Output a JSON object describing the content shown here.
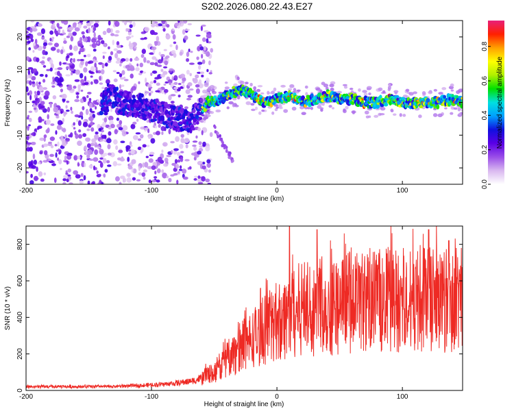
{
  "title": "S202.2026.080.22.43.E27",
  "colors": {
    "snr_line": "#ee2a24",
    "heat_low": "#e8d6f6",
    "heat_mid": "#6a1ae6",
    "axis": "#000000"
  },
  "colorbar": {
    "label": "Normalized spectral amplitude",
    "range": [
      0.0,
      0.95
    ],
    "ticks": [
      0.0,
      0.2,
      0.4,
      0.6,
      0.8
    ],
    "tick_labels": [
      "0.0",
      "0.2",
      "0.4",
      "0.6",
      "0.8"
    ],
    "stops": [
      "#ffffff",
      "#d9b8f0",
      "#9a4ee8",
      "#5a00e6",
      "#1010e0",
      "#00a0ff",
      "#00e0e0",
      "#00e000",
      "#b0f000",
      "#ffff00",
      "#ffa000",
      "#ff2000",
      "#e8207a"
    ]
  },
  "chart_data": [
    {
      "type": "heatmap",
      "panel": "spectrogram",
      "title": "S202.2026.080.22.43.E27",
      "xlabel": "Height of straight line (km)",
      "ylabel": "Frequency (Hz)",
      "xlim": [
        -200,
        148
      ],
      "ylim": [
        -25,
        25
      ],
      "xticks": [
        -200,
        -100,
        0,
        100
      ],
      "xtick_labels": [
        "-200",
        "-100",
        "0",
        "100"
      ],
      "yticks": [
        -20,
        -10,
        0,
        10,
        20
      ],
      "ytick_labels": [
        "-20",
        "-10",
        "0",
        "10",
        "20"
      ],
      "colorbar_label": "Normalized spectral amplitude",
      "signal_centerline": [
        [
          -135,
          3
        ],
        [
          -125,
          0
        ],
        [
          -110,
          -1
        ],
        [
          -95,
          -3
        ],
        [
          -80,
          -5
        ],
        [
          -70,
          -6
        ],
        [
          -62,
          -3
        ],
        [
          -55,
          0
        ],
        [
          -45,
          1
        ],
        [
          -35,
          3
        ],
        [
          -28,
          4
        ],
        [
          -20,
          2
        ],
        [
          -10,
          0
        ],
        [
          0,
          1
        ],
        [
          10,
          2
        ],
        [
          20,
          0
        ],
        [
          30,
          1
        ],
        [
          40,
          2
        ],
        [
          50,
          1
        ],
        [
          60,
          1
        ],
        [
          70,
          0
        ],
        [
          80,
          0
        ],
        [
          90,
          1
        ],
        [
          100,
          0
        ],
        [
          110,
          0
        ],
        [
          120,
          0
        ],
        [
          130,
          0
        ],
        [
          140,
          1
        ],
        [
          148,
          0
        ]
      ],
      "noise_extent_x": [
        -200,
        -60
      ]
    },
    {
      "type": "line",
      "panel": "snr",
      "xlabel": "Height of straight line (km)",
      "ylabel": "SNR (10 * v/v)",
      "xlim": [
        -200,
        148
      ],
      "ylim": [
        0,
        900
      ],
      "xticks": [
        -200,
        -100,
        0,
        100
      ],
      "xtick_labels": [
        "-200",
        "-100",
        "0",
        "100"
      ],
      "yticks": [
        0,
        200,
        400,
        600,
        800
      ],
      "ytick_labels": [
        "0",
        "200",
        "400",
        "600",
        "800"
      ],
      "series": [
        {
          "name": "SNR",
          "trend": [
            [
              -200,
              20
            ],
            [
              -130,
              22
            ],
            [
              -100,
              30
            ],
            [
              -80,
              40
            ],
            [
              -65,
              55
            ],
            [
              -50,
              100
            ],
            [
              -40,
              170
            ],
            [
              -30,
              230
            ],
            [
              -20,
              280
            ],
            [
              -10,
              330
            ],
            [
              0,
              380
            ],
            [
              10,
              420
            ],
            [
              20,
              450
            ],
            [
              40,
              460
            ],
            [
              60,
              480
            ],
            [
              80,
              500
            ],
            [
              100,
              500
            ],
            [
              120,
              510
            ],
            [
              148,
              500
            ]
          ],
          "peaks": [
            [
              10,
              900
            ],
            [
              32,
              880
            ],
            [
              121,
              880
            ],
            [
              137,
              820
            ]
          ]
        }
      ]
    }
  ]
}
